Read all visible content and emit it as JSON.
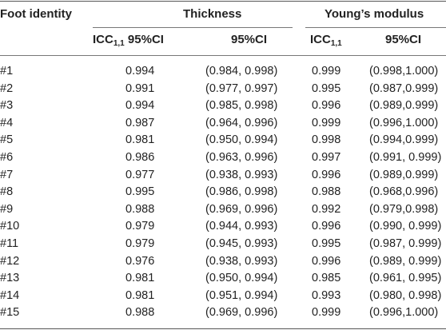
{
  "header": {
    "col1": "Foot identity",
    "thickness": "Thickness",
    "youngs": "Young’s modulus",
    "icc_thickness_base": "ICC",
    "icc_thickness_sub": "1,1",
    "icc_thickness_ci": "95%CI",
    "ci_thickness": "95%CI",
    "icc_youngs_base": "ICC",
    "icc_youngs_sub": "1,1",
    "ci_youngs": "95%CI"
  },
  "rows": [
    {
      "id": "#1",
      "t_icc": "0.994",
      "t_ci": "(0.984, 0.998)",
      "y_icc": "0.999",
      "y_ci": "(0.998,1.000)"
    },
    {
      "id": "#2",
      "t_icc": "0.991",
      "t_ci": "(0.977, 0.997)",
      "y_icc": "0.995",
      "y_ci": "(0.987,0.999)"
    },
    {
      "id": "#3",
      "t_icc": "0.994",
      "t_ci": "(0.985, 0.998)",
      "y_icc": "0.996",
      "y_ci": "(0.989,0.999)"
    },
    {
      "id": "#4",
      "t_icc": "0.987",
      "t_ci": "(0.964, 0.996)",
      "y_icc": "0.999",
      "y_ci": "(0.996,1.000)"
    },
    {
      "id": "#5",
      "t_icc": "0.981",
      "t_ci": "(0.950, 0.994)",
      "y_icc": "0.998",
      "y_ci": "(0.994,0.999)"
    },
    {
      "id": "#6",
      "t_icc": "0.986",
      "t_ci": "(0.963, 0.996)",
      "y_icc": "0.997",
      "y_ci": "(0.991, 0.999)"
    },
    {
      "id": "#7",
      "t_icc": "0.977",
      "t_ci": "(0.938, 0.993)",
      "y_icc": "0.996",
      "y_ci": "(0.989,0.999)"
    },
    {
      "id": "#8",
      "t_icc": "0.995",
      "t_ci": "(0.986, 0.998)",
      "y_icc": "0.988",
      "y_ci": "(0.968,0.996)"
    },
    {
      "id": "#9",
      "t_icc": "0.988",
      "t_ci": "(0.969, 0.996)",
      "y_icc": "0.992",
      "y_ci": "(0.979,0.998)"
    },
    {
      "id": "#10",
      "t_icc": "0.979",
      "t_ci": "(0.944, 0.993)",
      "y_icc": "0.996",
      "y_ci": "(0.990, 0.999)"
    },
    {
      "id": "#11",
      "t_icc": "0.979",
      "t_ci": "(0.945, 0.993)",
      "y_icc": "0.995",
      "y_ci": "(0.987, 0.999)"
    },
    {
      "id": "#12",
      "t_icc": "0.976",
      "t_ci": "(0.938, 0.993)",
      "y_icc": "0.996",
      "y_ci": "(0.989, 0.999)"
    },
    {
      "id": "#13",
      "t_icc": "0.981",
      "t_ci": "(0.950, 0.994)",
      "y_icc": "0.985",
      "y_ci": "(0.961, 0.995)"
    },
    {
      "id": "#14",
      "t_icc": "0.981",
      "t_ci": "(0.951, 0.994)",
      "y_icc": "0.993",
      "y_ci": "(0.980, 0.998)"
    },
    {
      "id": "#15",
      "t_icc": "0.988",
      "t_ci": "(0.969, 0.996)",
      "y_icc": "0.999",
      "y_ci": "(0.996,1.000)"
    }
  ],
  "colors": {
    "rule": "#555555",
    "text": "#222222"
  }
}
